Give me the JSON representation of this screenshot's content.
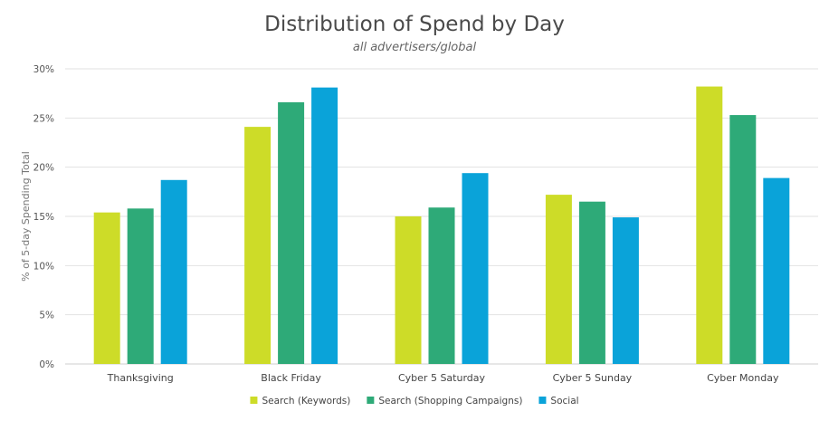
{
  "chart_data": {
    "type": "bar",
    "title": "Distribution of Spend by Day",
    "subtitle": "all advertisers/global",
    "xlabel": "",
    "ylabel": "% of 5-day Spending Total",
    "ylim": [
      0,
      30
    ],
    "yticks": [
      0,
      5,
      10,
      15,
      20,
      25,
      30
    ],
    "ytick_labels": [
      "0%",
      "5%",
      "10%",
      "15%",
      "20%",
      "25%",
      "30%"
    ],
    "grid": true,
    "legend_position": "bottom",
    "categories": [
      "Thanksgiving",
      "Black Friday",
      "Cyber 5 Saturday",
      "Cyber 5 Sunday",
      "Cyber Monday"
    ],
    "series": [
      {
        "name": "Search (Keywords)",
        "color": "#cddc28",
        "values": [
          15.4,
          24.1,
          15.0,
          17.2,
          28.2
        ]
      },
      {
        "name": "Search (Shopping Campaigns)",
        "color": "#2eaa78",
        "values": [
          15.8,
          26.6,
          15.9,
          16.5,
          25.3
        ]
      },
      {
        "name": "Social",
        "color": "#0aa3d9",
        "values": [
          18.7,
          28.1,
          19.4,
          14.9,
          18.9
        ]
      }
    ]
  }
}
